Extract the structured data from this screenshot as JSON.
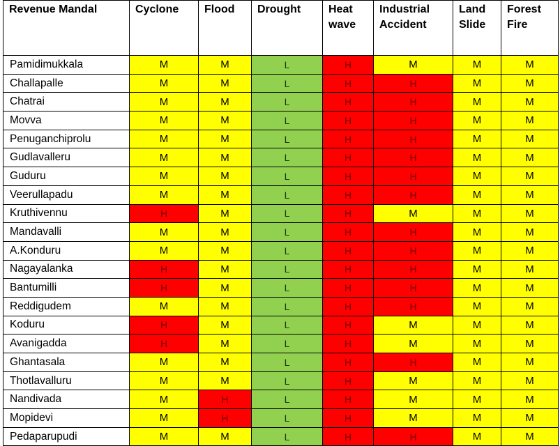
{
  "colors": {
    "M": "#ffff00",
    "H": "#ff0000",
    "L": "#92d050"
  },
  "headers": [
    "Revenue Mandal",
    "Cyclone",
    "Flood",
    "Drought",
    "Heat\nwave",
    "Industrial\nAccident",
    "Land\nSlide",
    "Forest\nFire"
  ],
  "rows": [
    {
      "mandal": "Pamidimukkala",
      "values": [
        "M",
        "M",
        "L",
        "H",
        "M",
        "M",
        "M"
      ]
    },
    {
      "mandal": "Challapalle",
      "values": [
        "M",
        "M",
        "L",
        "H",
        "H",
        "M",
        "M"
      ]
    },
    {
      "mandal": "Chatrai",
      "values": [
        "M",
        "M",
        "L",
        "H",
        "H",
        "M",
        "M"
      ]
    },
    {
      "mandal": "Movva",
      "values": [
        "M",
        "M",
        "L",
        "H",
        "H",
        "M",
        "M"
      ]
    },
    {
      "mandal": "Penuganchiprolu",
      "values": [
        "M",
        "M",
        "L",
        "H",
        "H",
        "M",
        "M"
      ]
    },
    {
      "mandal": "Gudlavalleru",
      "values": [
        "M",
        "M",
        "L",
        "H",
        "H",
        "M",
        "M"
      ]
    },
    {
      "mandal": "Guduru",
      "values": [
        "M",
        "M",
        "L",
        "H",
        "H",
        "M",
        "M"
      ]
    },
    {
      "mandal": "Veerullapadu",
      "values": [
        "M",
        "M",
        "L",
        "H",
        "H",
        "M",
        "M"
      ]
    },
    {
      "mandal": "Kruthivennu",
      "values": [
        "H",
        "M",
        "L",
        "H",
        "M",
        "M",
        "M"
      ]
    },
    {
      "mandal": "Mandavalli",
      "values": [
        "M",
        "M",
        "L",
        "H",
        "H",
        "M",
        "M"
      ]
    },
    {
      "mandal": "A.Konduru",
      "values": [
        "M",
        "M",
        "L",
        "H",
        "H",
        "M",
        "M"
      ]
    },
    {
      "mandal": "Nagayalanka",
      "values": [
        "H",
        "M",
        "L",
        "H",
        "H",
        "M",
        "M"
      ]
    },
    {
      "mandal": "Bantumilli",
      "values": [
        "H",
        "M",
        "L",
        "H",
        "H",
        "M",
        "M"
      ]
    },
    {
      "mandal": "Reddigudem",
      "values": [
        "M",
        "M",
        "L",
        "H",
        "H",
        "M",
        "M"
      ]
    },
    {
      "mandal": "Koduru",
      "values": [
        "H",
        "M",
        "L",
        "H",
        "M",
        "M",
        "M"
      ]
    },
    {
      "mandal": "Avanigadda",
      "values": [
        "H",
        "M",
        "L",
        "H",
        "M",
        "M",
        "M"
      ]
    },
    {
      "mandal": "Ghantasala",
      "values": [
        "M",
        "M",
        "L",
        "H",
        "H",
        "M",
        "M"
      ]
    },
    {
      "mandal": "Thotlavalluru",
      "values": [
        "M",
        "M",
        "L",
        "H",
        "M",
        "M",
        "M"
      ]
    },
    {
      "mandal": "Nandivada",
      "values": [
        "M",
        "H",
        "L",
        "H",
        "M",
        "M",
        "M"
      ]
    },
    {
      "mandal": "Mopidevi",
      "values": [
        "M",
        "H",
        "L",
        "H",
        "M",
        "M",
        "M"
      ]
    },
    {
      "mandal": "Pedaparupudi",
      "values": [
        "M",
        "M",
        "L",
        "H",
        "H",
        "M",
        "M"
      ]
    }
  ]
}
